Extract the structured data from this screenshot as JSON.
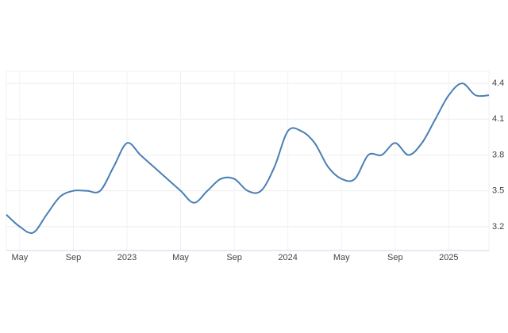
{
  "chart_data": {
    "type": "line",
    "categories": [
      null,
      "May",
      null,
      null,
      null,
      "Sep",
      null,
      null,
      null,
      "2023",
      null,
      null,
      null,
      "May",
      null,
      null,
      null,
      "Sep",
      null,
      null,
      null,
      "2024",
      null,
      null,
      null,
      "May",
      null,
      null,
      null,
      "Sep",
      null,
      null,
      null,
      "2025",
      null,
      null,
      null
    ],
    "values": [
      3.3,
      3.2,
      3.15,
      3.3,
      3.45,
      3.5,
      3.5,
      3.5,
      3.7,
      3.9,
      3.8,
      3.7,
      3.6,
      3.5,
      3.4,
      3.5,
      3.6,
      3.6,
      3.5,
      3.5,
      3.7,
      4.0,
      4.0,
      3.9,
      3.7,
      3.6,
      3.6,
      3.8,
      3.8,
      3.9,
      3.8,
      3.9,
      4.1,
      4.3,
      4.4,
      4.3,
      4.3
    ],
    "color": "#4a7fb5",
    "ylim": [
      3.0,
      4.5
    ],
    "yticks": [
      3.2,
      3.5,
      3.8,
      4.1,
      4.4
    ],
    "grid": true
  }
}
